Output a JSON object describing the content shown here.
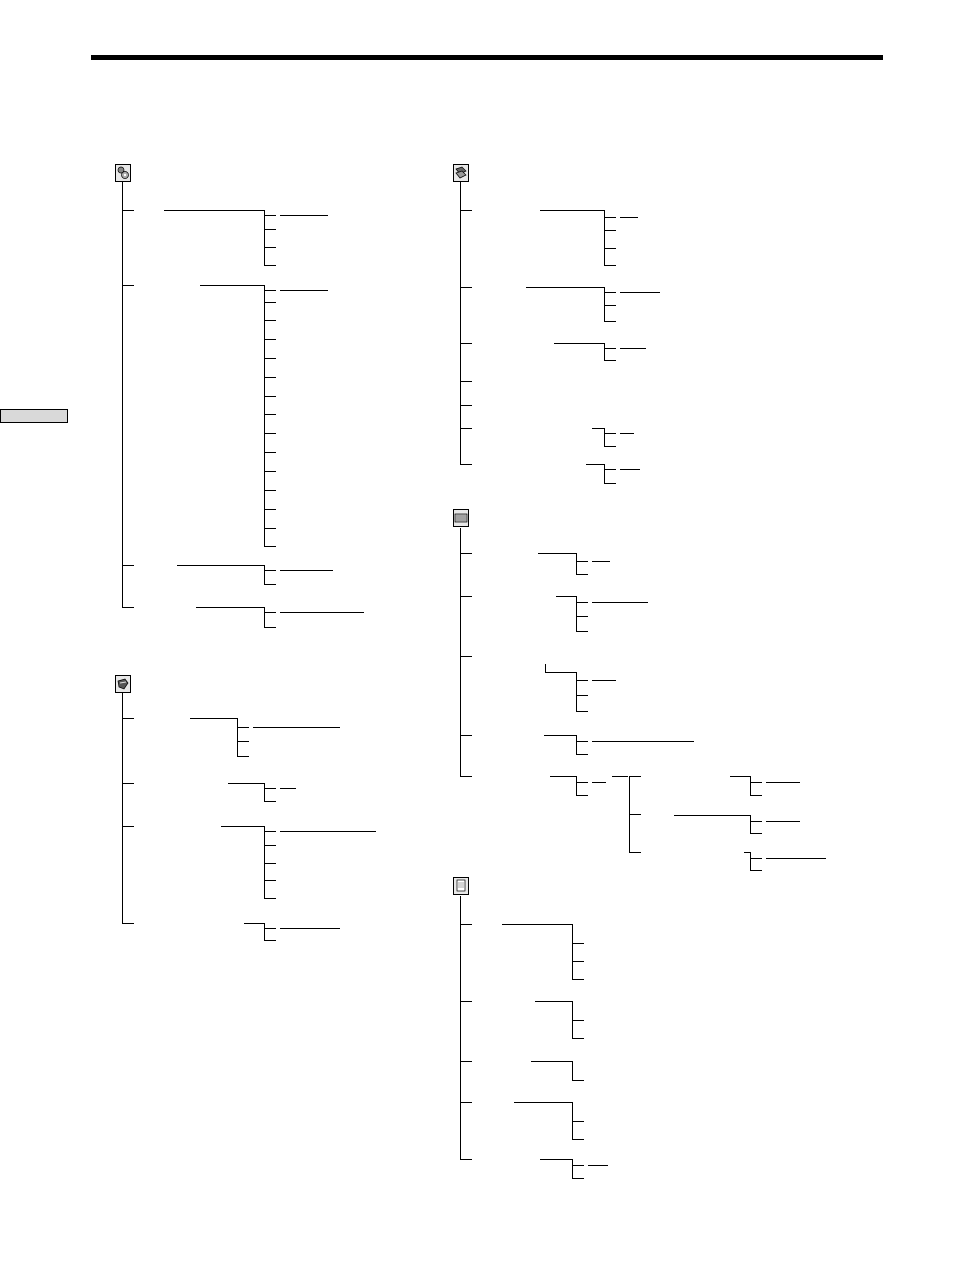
{
  "page": {
    "title": "",
    "side_tab_label": ""
  },
  "menus": [
    {
      "icon": "settings-icon"
    },
    {
      "icon": "tools-icon"
    },
    {
      "icon": "book-icon"
    },
    {
      "icon": "keyboard-icon"
    },
    {
      "icon": "document-icon"
    }
  ]
}
